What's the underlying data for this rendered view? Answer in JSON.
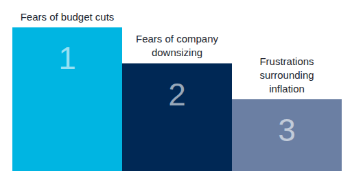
{
  "chart_data": {
    "type": "bar",
    "categories": [
      "Fears of budget cuts",
      "Fears of company\ndownsizing",
      "Frustrations\nsurrounding\ninflation"
    ],
    "values": [
      4,
      3,
      2
    ],
    "ranks": [
      1,
      2,
      3
    ],
    "colors": [
      "#00b5e2",
      "#002855",
      "#6b7fa3"
    ],
    "ylim": [
      0,
      4
    ],
    "tick_labels": false,
    "grid": false
  }
}
